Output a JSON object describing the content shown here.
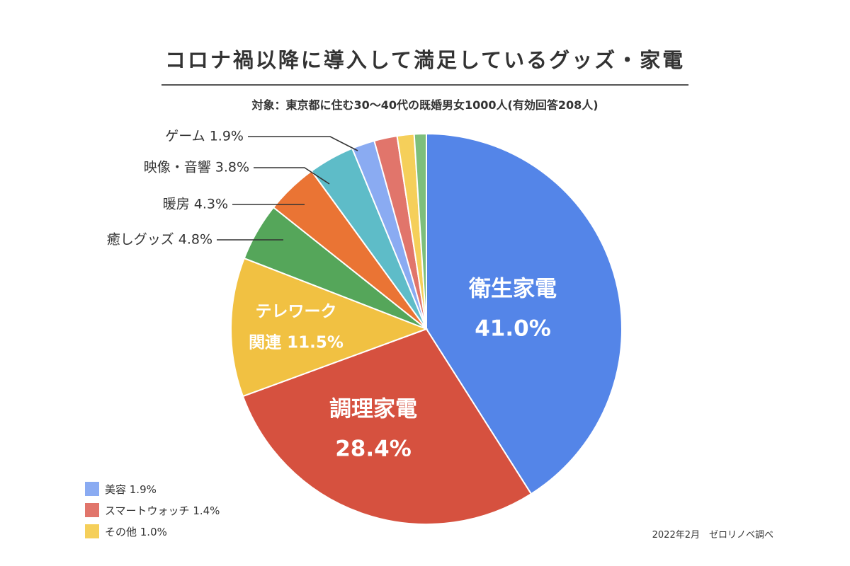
{
  "header": {
    "title": "コロナ禍以降に導入して満足しているグッズ・家電",
    "subtitle": "対象：東京都に住む30～40代の既婚男女1000人(有効回答208人)"
  },
  "footer": {
    "source": "2022年2月　ゼロリノベ調べ"
  },
  "legend": [
    {
      "label": "美容 1.9%",
      "color": "#8aabf2"
    },
    {
      "label": "スマートウォッチ 1.4%",
      "color": "#e1756b"
    },
    {
      "label": "その他 1.0%",
      "color": "#f5cf5a"
    }
  ],
  "chart_data": {
    "type": "pie",
    "slices": [
      {
        "name": "衛生家電",
        "value": 41.0,
        "value_label": "41.0%",
        "color": "#5485e8",
        "inside_lines": [
          "衛生家電",
          "41.0%"
        ]
      },
      {
        "name": "調理家電",
        "value": 28.4,
        "value_label": "28.4%",
        "color": "#d6513f",
        "inside_lines": [
          "調理家電",
          "28.4%"
        ]
      },
      {
        "name": "テレワーク関連",
        "value": 11.5,
        "value_label": "11.5%",
        "color": "#f1c142",
        "inside_lines": [
          "テレワーク",
          "関連 11.5%"
        ]
      },
      {
        "name": "癒しグッズ",
        "value": 4.8,
        "value_label": "4.8%",
        "color": "#55a65a",
        "callout": "癒しグッズ 4.8%"
      },
      {
        "name": "暖房",
        "value": 4.3,
        "value_label": "4.3%",
        "color": "#ea7434",
        "callout": "暖房 4.3%"
      },
      {
        "name": "映像・音響",
        "value": 3.8,
        "value_label": "3.8%",
        "color": "#5ebcc8",
        "callout": "映像・音響 3.8%"
      },
      {
        "name": "ゲーム",
        "value": 1.9,
        "value_label": "1.9%",
        "color": "#8aabf2",
        "callout": "ゲーム 1.9%"
      },
      {
        "name": "美容",
        "value": 1.9,
        "value_label": "1.9%",
        "color": "#e1756b"
      },
      {
        "name": "スマートウォッチ",
        "value": 1.4,
        "value_label": "1.4%",
        "color": "#f5cf5a"
      },
      {
        "name": "その他",
        "value": 1.0,
        "value_label": "1.0%",
        "color": "#7dbf7c"
      }
    ]
  }
}
